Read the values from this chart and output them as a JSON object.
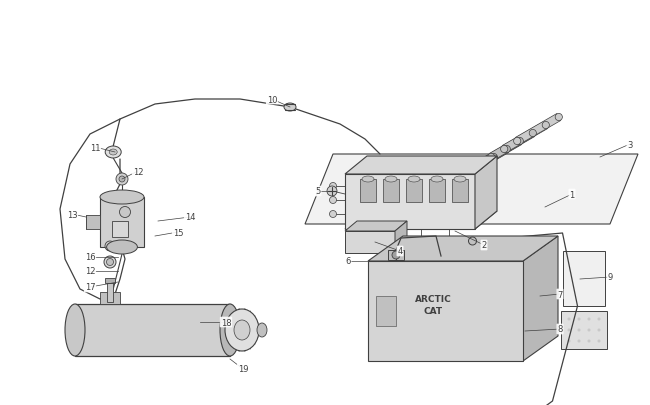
{
  "bg_color": "#ffffff",
  "line_color": "#404040",
  "lw": 0.7,
  "fig_width": 6.5,
  "fig_height": 4.06,
  "dpi": 100
}
